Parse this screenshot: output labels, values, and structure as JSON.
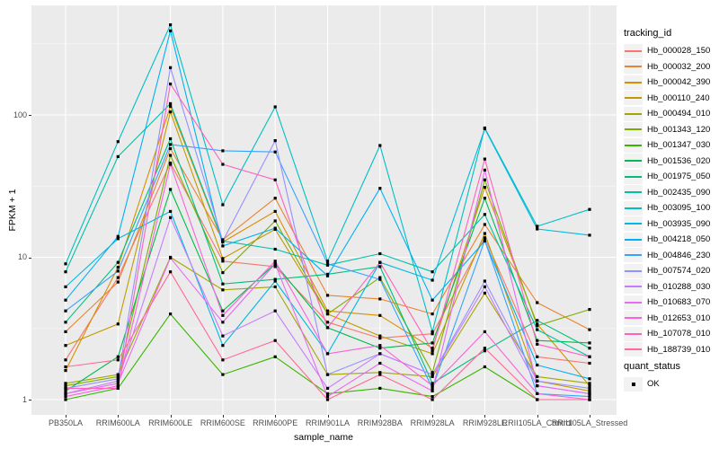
{
  "figure": {
    "y_axis_title": "FPKM + 1",
    "x_axis_title": "sample_name",
    "legend_title": "tracking_id",
    "quant_legend_title": "quant_status",
    "quant_ok_label": "OK"
  },
  "colors": {
    "panel_background": "#EBEBEB",
    "gridline_major": "#FFFFFF",
    "gridline_minor": "#F5F5F5",
    "tick_text": "#4D4D4D",
    "axis_tick": "#333333",
    "point_marker": "#000000",
    "legend_key_background": "#F2F2F2"
  },
  "chart_data": {
    "type": "line",
    "title": "",
    "xlabel": "sample_name",
    "ylabel": "FPKM + 1",
    "y_scale": "log10",
    "yticks": [
      1,
      10,
      100
    ],
    "ytick_labels": [
      "1",
      "10",
      "100"
    ],
    "minor_breaks": [
      3.162,
      31.62,
      316.2
    ],
    "ylim": [
      0.76,
      590
    ],
    "grid": true,
    "legend_position": "right",
    "legend_title": "tracking_id",
    "point_marker": "filled black square (quant_status = OK)",
    "categories": [
      "PB350LA",
      "RRIM600LA",
      "RRIM600LE",
      "RRIM600SE",
      "RRIM600PE",
      "RRIM901LA",
      "RRIM928BA",
      "RRIM928LA",
      "RRIM928LE",
      "RRII105LA_Control",
      "RRII105LA_Stressed"
    ],
    "series": [
      {
        "name": "Hb_000028_150",
        "color": "#F8766D",
        "values": [
          1.9,
          7.2,
          46,
          9.4,
          8.6,
          3.5,
          2.7,
          2.9,
          13.7,
          2.0,
          1.8
        ]
      },
      {
        "name": "Hb_000032_200",
        "color": "#EA8331",
        "values": [
          3.0,
          6.7,
          58,
          13.3,
          26,
          5.4,
          5.1,
          4.0,
          17,
          4.8,
          3.1
        ]
      },
      {
        "name": "Hb_000042_390",
        "color": "#D89000",
        "values": [
          1.6,
          8.5,
          115,
          12.8,
          21,
          4.2,
          3.9,
          2.3,
          31,
          3.4,
          1.25
        ]
      },
      {
        "name": "Hb_000110_240",
        "color": "#C09B00",
        "values": [
          2.4,
          3.4,
          105,
          9.8,
          15.7,
          4.0,
          2.8,
          2.1,
          14.7,
          1.35,
          1.15
        ]
      },
      {
        "name": "Hb_000494_010",
        "color": "#A3A500",
        "values": [
          1.3,
          1.5,
          10,
          5.9,
          6.2,
          1.5,
          1.55,
          1.45,
          5.6,
          1.45,
          1.3
        ]
      },
      {
        "name": "Hb_001343_120",
        "color": "#7CAE00",
        "values": [
          1.25,
          1.45,
          52,
          7.8,
          18,
          4.0,
          7.2,
          1.55,
          35,
          3.3,
          4.3
        ]
      },
      {
        "name": "Hb_001347_030",
        "color": "#39B600",
        "values": [
          1.0,
          1.2,
          4.0,
          1.5,
          2.0,
          1.1,
          1.2,
          1.05,
          1.7,
          1.0,
          1.0
        ]
      },
      {
        "name": "Hb_001536_020",
        "color": "#00BB4E",
        "values": [
          1.15,
          2.0,
          30,
          4.2,
          9.0,
          3.2,
          2.3,
          2.5,
          26,
          2.6,
          2.5
        ]
      },
      {
        "name": "Hb_001975_050",
        "color": "#00BF7D",
        "values": [
          3.5,
          9.2,
          68,
          6.5,
          7.0,
          7.6,
          8.6,
          1.3,
          2.2,
          3.6,
          2.3
        ]
      },
      {
        "name": "Hb_002435_090",
        "color": "#00C1A3",
        "values": [
          7.9,
          51,
          120,
          13.0,
          11.4,
          8.8,
          10.6,
          7.9,
          20,
          3.1,
          2.0
        ]
      },
      {
        "name": "Hb_003095_100",
        "color": "#00BFC4",
        "values": [
          9.0,
          65,
          430,
          23.4,
          114,
          9.4,
          61,
          3.0,
          81,
          16.5,
          21.7
        ]
      },
      {
        "name": "Hb_003935_090",
        "color": "#00BAE0",
        "values": [
          6.2,
          13.5,
          21,
          2.4,
          6.8,
          2.1,
          9.2,
          6.9,
          80,
          15.8,
          14.3
        ]
      },
      {
        "name": "Hb_004218_050",
        "color": "#00B0F6",
        "values": [
          5.0,
          14,
          390,
          12.0,
          16,
          7.4,
          30.5,
          5.0,
          13,
          1.75,
          1.4
        ]
      },
      {
        "name": "Hb_004846_230",
        "color": "#35A2FF",
        "values": [
          4.2,
          8.0,
          62,
          56,
          55,
          9.0,
          7.0,
          1.2,
          13.2,
          1.1,
          1.05
        ]
      },
      {
        "name": "Hb_007574_020",
        "color": "#9590FF",
        "values": [
          1.2,
          1.4,
          215,
          13.0,
          66,
          1.5,
          2.1,
          1.5,
          6.8,
          1.35,
          1.2
        ]
      },
      {
        "name": "Hb_010288_030",
        "color": "#C77CFF",
        "values": [
          1.1,
          1.35,
          19,
          2.8,
          4.2,
          1.2,
          2.1,
          1.5,
          6.2,
          1.25,
          1.1
        ]
      },
      {
        "name": "Hb_010683_070",
        "color": "#E76BF3",
        "values": [
          1.1,
          1.3,
          9.9,
          3.5,
          9.0,
          1.05,
          1.8,
          1.15,
          41,
          1.25,
          1.1
        ]
      },
      {
        "name": "Hb_012653_010",
        "color": "#FA62DB",
        "values": [
          1.05,
          1.25,
          45,
          3.9,
          9.4,
          2.1,
          2.4,
          1.25,
          3.0,
          1.1,
          1.0
        ]
      },
      {
        "name": "Hb_107078_010",
        "color": "#FF62BC",
        "values": [
          1.2,
          1.2,
          165,
          45,
          35,
          3.2,
          9.2,
          2.2,
          49,
          2.45,
          2.0
        ]
      },
      {
        "name": "Hb_188739_010",
        "color": "#FF6A98",
        "values": [
          1.7,
          1.9,
          7.9,
          1.9,
          2.6,
          1.0,
          1.5,
          1.0,
          2.3,
          1.0,
          1.0
        ]
      }
    ]
  }
}
